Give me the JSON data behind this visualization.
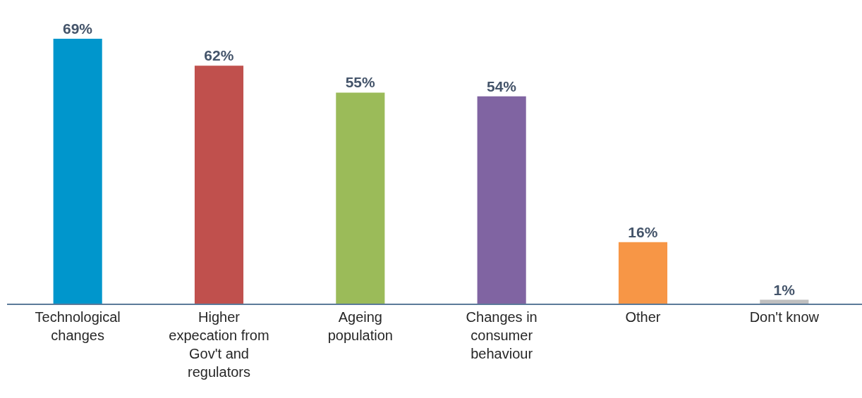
{
  "chart_data": {
    "type": "bar",
    "categories": [
      "Technological changes",
      "Higher expecation from Gov't and regulators",
      "Ageing population",
      "Changes in consumer behaviour",
      "Other",
      "Don't know"
    ],
    "values": [
      69,
      62,
      55,
      54,
      16,
      1
    ],
    "colors": [
      "#0096cc",
      "#c0504d",
      "#9bbb59",
      "#8064a2",
      "#f79646",
      "#bfbfbf"
    ],
    "value_labels": [
      "69%",
      "62%",
      "55%",
      "54%",
      "16%",
      "1%"
    ]
  }
}
